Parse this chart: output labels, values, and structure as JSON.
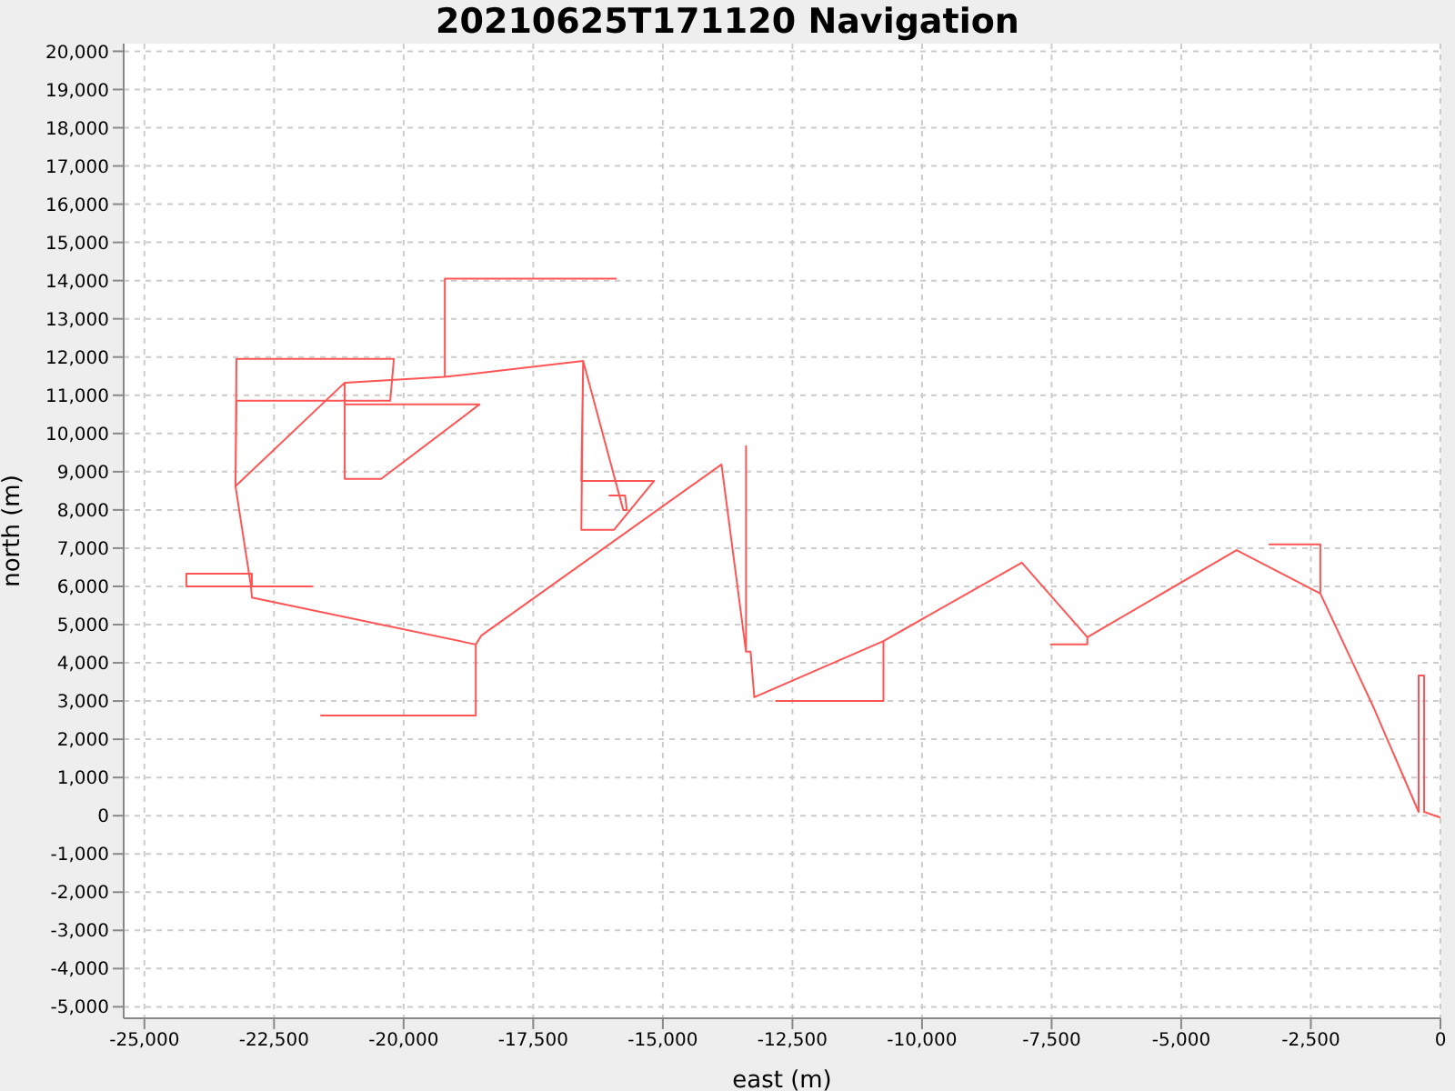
{
  "chart_data": {
    "type": "line",
    "title": "20210625T171120 Navigation",
    "xlabel": "east (m)",
    "ylabel": "north (m)",
    "xlim": [
      -25400,
      0
    ],
    "ylim": [
      -5300,
      20200
    ],
    "xticks": [
      {
        "value": -25000,
        "label": "-25,000"
      },
      {
        "value": -22500,
        "label": "-22,500"
      },
      {
        "value": -20000,
        "label": "-20,000"
      },
      {
        "value": -17500,
        "label": "-17,500"
      },
      {
        "value": -15000,
        "label": "-15,000"
      },
      {
        "value": -12500,
        "label": "-12,500"
      },
      {
        "value": -10000,
        "label": "-10,000"
      },
      {
        "value": -7500,
        "label": "-7,500"
      },
      {
        "value": -5000,
        "label": "-5,000"
      },
      {
        "value": -2500,
        "label": "-2,500"
      },
      0
    ],
    "yticks": [
      {
        "value": -5000,
        "label": "-5,000"
      },
      {
        "value": -4000,
        "label": "-4,000"
      },
      {
        "value": -3000,
        "label": "-3,000"
      },
      {
        "value": -2000,
        "label": "-2,000"
      },
      {
        "value": -1000,
        "label": "-1,000"
      },
      0,
      {
        "value": 1000,
        "label": "1,000"
      },
      {
        "value": 2000,
        "label": "2,000"
      },
      {
        "value": 3000,
        "label": "3,000"
      },
      {
        "value": 4000,
        "label": "4,000"
      },
      {
        "value": 5000,
        "label": "5,000"
      },
      {
        "value": 6000,
        "label": "6,000"
      },
      {
        "value": 7000,
        "label": "7,000"
      },
      {
        "value": 8000,
        "label": "8,000"
      },
      {
        "value": 9000,
        "label": "9,000"
      },
      {
        "value": 10000,
        "label": "10,000"
      },
      {
        "value": 11000,
        "label": "11,000"
      },
      {
        "value": 12000,
        "label": "12,000"
      },
      {
        "value": 13000,
        "label": "13,000"
      },
      {
        "value": 14000,
        "label": "14,000"
      },
      {
        "value": 15000,
        "label": "15,000"
      },
      {
        "value": 16000,
        "label": "16,000"
      },
      {
        "value": 17000,
        "label": "17,000"
      },
      {
        "value": 18000,
        "label": "18,000"
      },
      {
        "value": 19000,
        "label": "19,000"
      },
      {
        "value": 20000,
        "label": "20,000"
      }
    ],
    "grid": true,
    "legend": false,
    "marker": "none",
    "line_style": "solid",
    "series": [
      {
        "color": "#ff5555",
        "x": [
          0,
          -316,
          -316,
          -421,
          -421,
          -1299,
          -2317,
          -2317,
          -3300,
          -2317,
          -2317,
          -3932,
          -6811,
          -6811,
          -7514,
          -6811,
          -6811,
          -8075,
          -10744,
          -10744,
          -12815,
          -10744,
          -10744,
          -13236,
          -13307,
          -13395,
          -13395,
          -13395,
          -13869,
          -18503,
          -18608,
          -18608,
          -21593,
          -18608,
          -18608,
          -22927,
          -22944,
          -21770,
          -24191,
          -24191,
          -22927,
          -22927,
          -22944,
          -23243,
          -23225,
          -20258,
          -20188,
          -23225,
          -23243,
          -21136,
          -21136,
          -20434,
          -18538,
          -21136,
          -21136,
          -19205,
          -19205,
          -15905,
          -19205,
          -19205,
          -16537,
          -16572,
          -15940,
          -15168,
          -16572,
          -16537,
          -15764,
          -15694,
          -15729,
          -16045
        ],
        "values": [
          -50,
          100,
          3670,
          3670,
          100,
          2860,
          5810,
          7100,
          7100,
          7100,
          5810,
          6950,
          4670,
          4480,
          4480,
          4480,
          4670,
          6620,
          4570,
          3000,
          3000,
          3000,
          4570,
          3100,
          4290,
          4290,
          9670,
          4290,
          9190,
          4710,
          4480,
          2620,
          2620,
          2620,
          4480,
          5710,
          6000,
          6000,
          6000,
          6330,
          6330,
          6000,
          6000,
          8620,
          10860,
          10860,
          11950,
          11950,
          8620,
          11330,
          8810,
          8810,
          10760,
          10760,
          11330,
          11480,
          14050,
          14050,
          14050,
          11480,
          11900,
          7480,
          7480,
          8760,
          8760,
          11900,
          8000,
          8000,
          8380,
          8380
        ]
      }
    ]
  }
}
